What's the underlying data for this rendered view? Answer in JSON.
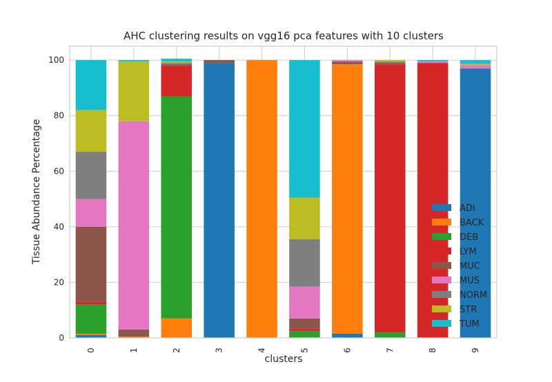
{
  "chart_data": {
    "type": "bar",
    "stacked": true,
    "title": "AHC clustering results on vgg16 pca features with 10 clusters",
    "xlabel": "clusters",
    "ylabel": "Tissue Abundance Percentage",
    "ylim": [
      0,
      105
    ],
    "yticks": [
      0,
      20,
      40,
      60,
      80,
      100
    ],
    "categories": [
      "0",
      "1",
      "2",
      "3",
      "4",
      "5",
      "6",
      "7",
      "8",
      "9"
    ],
    "grid": true,
    "legend_position": "lower-right",
    "series": [
      {
        "name": "ADI",
        "color": "#1f77b4",
        "values": [
          1.0,
          0.0,
          0.0,
          99.0,
          0.0,
          0.0,
          1.5,
          0.0,
          0.0,
          97.0
        ]
      },
      {
        "name": "BACK",
        "color": "#ff7f0e",
        "values": [
          0.5,
          0.5,
          7.0,
          0.0,
          100.0,
          0.0,
          97.0,
          0.0,
          0.0,
          0.0
        ]
      },
      {
        "name": "DEB",
        "color": "#2ca02c",
        "values": [
          10.5,
          0.0,
          80.0,
          0.0,
          0.0,
          2.5,
          0.0,
          2.0,
          0.0,
          0.0
        ]
      },
      {
        "name": "LYM",
        "color": "#d62728",
        "values": [
          1.0,
          0.0,
          11.0,
          0.0,
          0.0,
          0.8,
          0.0,
          96.5,
          99.0,
          0.0
        ]
      },
      {
        "name": "MUC",
        "color": "#8c564b",
        "values": [
          27.0,
          2.5,
          0.5,
          1.0,
          0.0,
          3.7,
          1.0,
          0.5,
          0.0,
          0.0
        ]
      },
      {
        "name": "MUS",
        "color": "#e377c2",
        "values": [
          10.0,
          75.0,
          0.0,
          0.0,
          0.0,
          11.5,
          0.5,
          0.0,
          0.5,
          1.2
        ]
      },
      {
        "name": "NORM",
        "color": "#7f7f7f",
        "values": [
          17.0,
          0.0,
          0.5,
          0.0,
          0.0,
          17.0,
          0.0,
          0.5,
          0.0,
          0.0
        ]
      },
      {
        "name": "STR",
        "color": "#bcbd22",
        "values": [
          15.0,
          21.5,
          0.5,
          0.0,
          0.0,
          15.0,
          0.0,
          0.5,
          0.0,
          0.5
        ]
      },
      {
        "name": "TUM",
        "color": "#17becf",
        "values": [
          18.0,
          0.5,
          1.0,
          0.0,
          0.0,
          49.5,
          0.0,
          0.0,
          0.5,
          1.3
        ]
      }
    ]
  }
}
